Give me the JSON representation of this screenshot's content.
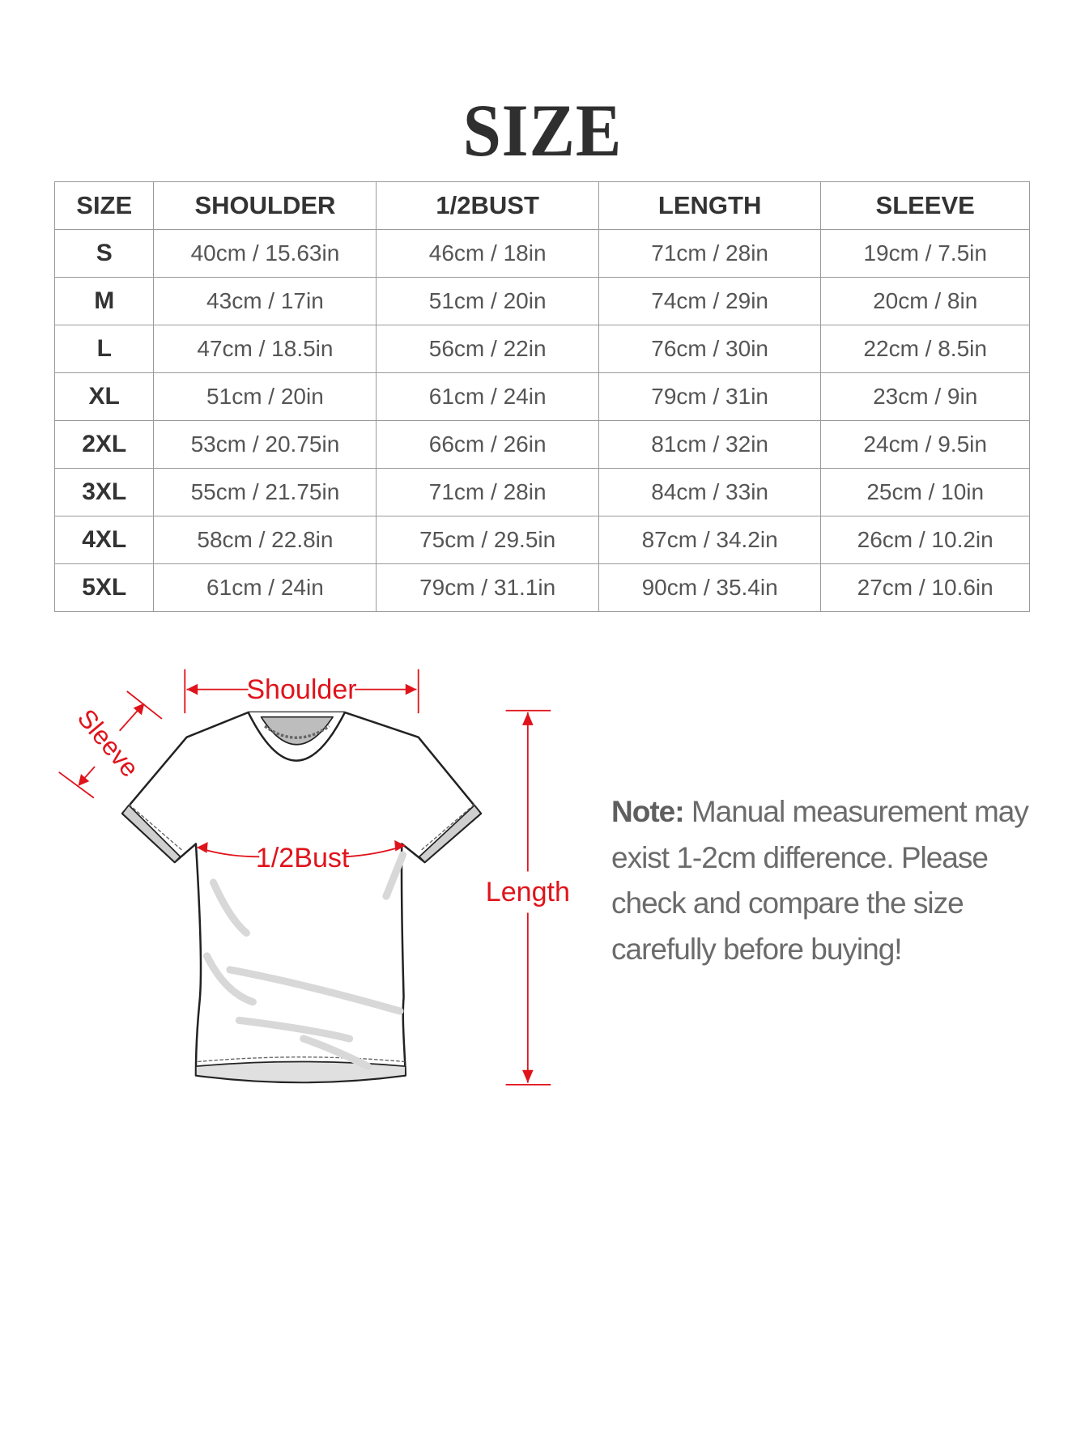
{
  "title": "SIZE",
  "table": {
    "headers": [
      "SIZE",
      "SHOULDER",
      "1/2BUST",
      "LENGTH",
      "SLEEVE"
    ],
    "rows": [
      [
        "S",
        "40cm / 15.63in",
        "46cm / 18in",
        "71cm / 28in",
        "19cm / 7.5in"
      ],
      [
        "M",
        "43cm / 17in",
        "51cm / 20in",
        "74cm / 29in",
        "20cm / 8in"
      ],
      [
        "L",
        "47cm / 18.5in",
        "56cm / 22in",
        "76cm / 30in",
        "22cm / 8.5in"
      ],
      [
        "XL",
        "51cm / 20in",
        "61cm / 24in",
        "79cm / 31in",
        "23cm / 9in"
      ],
      [
        "2XL",
        "53cm / 20.75in",
        "66cm / 26in",
        "81cm / 32in",
        "24cm / 9.5in"
      ],
      [
        "3XL",
        "55cm / 21.75in",
        "71cm / 28in",
        "84cm / 33in",
        "25cm / 10in"
      ],
      [
        "4XL",
        "58cm / 22.8in",
        "75cm / 29.5in",
        "87cm / 34.2in",
        "26cm / 10.2in"
      ],
      [
        "5XL",
        "61cm / 24in",
        "79cm / 31.1in",
        "90cm / 35.4in",
        "27cm / 10.6in"
      ]
    ]
  },
  "diagram": {
    "labels": {
      "shoulder": "Shoulder",
      "sleeve": "Sleeve",
      "bust": "1/2Bust",
      "length": "Length"
    },
    "annotation_color": "#e0131b"
  },
  "note": {
    "label": "Note:",
    "text": "Manual measurement may exist 1-2cm difference. Please check and compare the size carefully before buying!"
  }
}
